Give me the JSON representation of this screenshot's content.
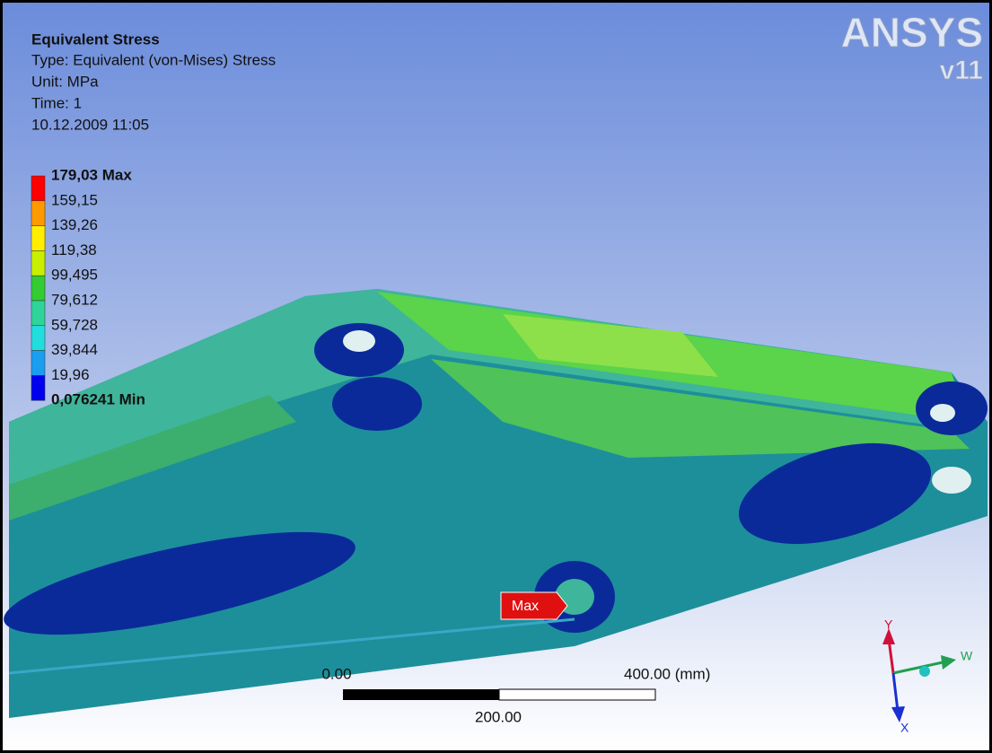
{
  "header": {
    "title": "Equivalent Stress",
    "lines": [
      "Type: Equivalent (von-Mises) Stress",
      "Unit: MPa",
      "Time: 1",
      "10.12.2009 11:05"
    ]
  },
  "logo": {
    "brand": "ANSYS",
    "version": "v11"
  },
  "legend": {
    "labels": [
      "179,03 Max",
      "159,15",
      "139,26",
      "119,38",
      "99,495",
      "79,612",
      "59,728",
      "39,844",
      "19,96",
      "0,076241 Min"
    ],
    "colors": [
      "#ff0000",
      "#ff9900",
      "#ffee00",
      "#c8ee00",
      "#33cc33",
      "#2fd49a",
      "#22dddd",
      "#1a9ef0",
      "#0000ee"
    ]
  },
  "probe": {
    "label": "Max"
  },
  "scale_bar": {
    "start": "0.00",
    "end": "400.00 (mm)",
    "middle": "200.00"
  },
  "triad": {
    "y": "Y",
    "z": "W",
    "x": "X"
  }
}
